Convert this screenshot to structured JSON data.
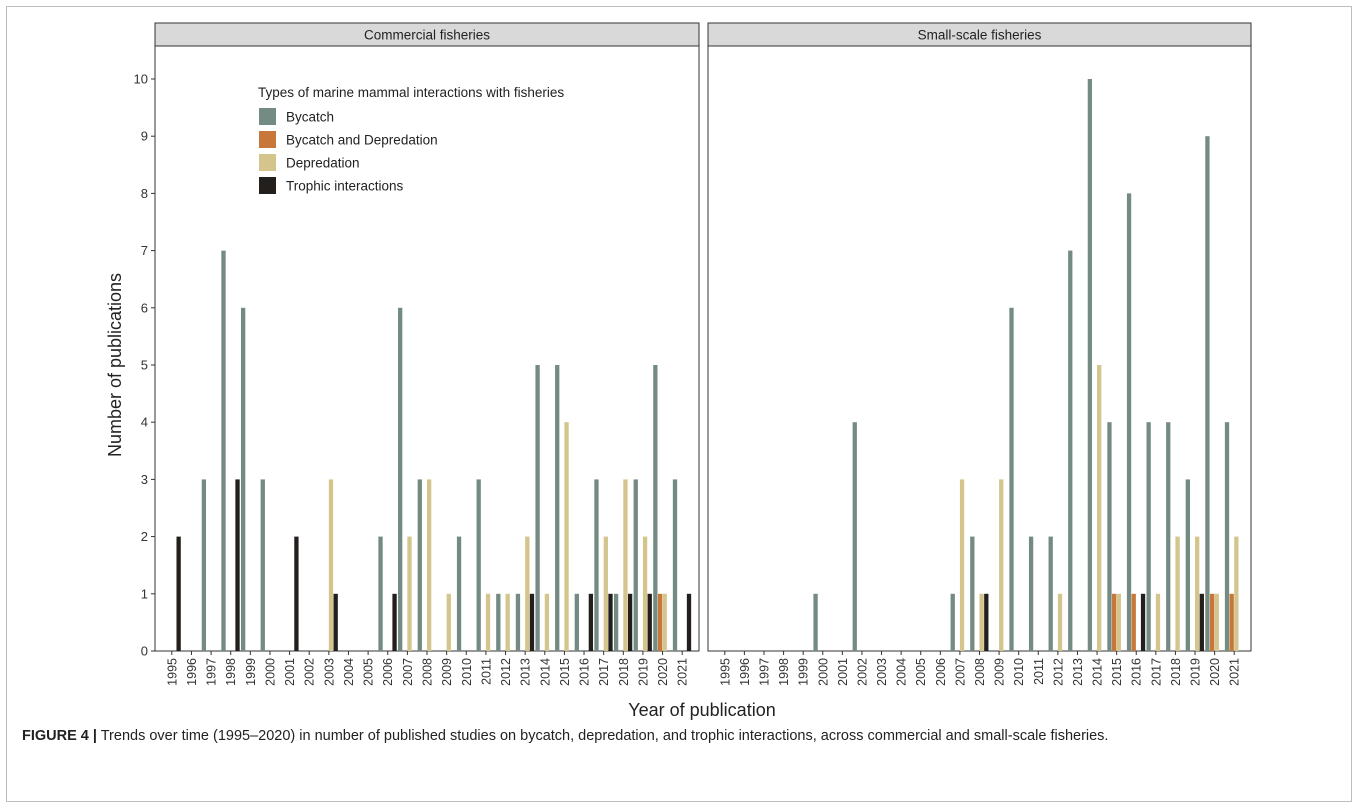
{
  "caption": {
    "label": "FIGURE 4 |",
    "text": " Trends over time (1995–2020) in number of published studies on bycatch, depredation, and trophic interactions, across commercial and small-scale fisheries."
  },
  "chart_data": {
    "type": "bar",
    "ylabel": "Number of publications",
    "xlabel": "Year of publication",
    "ylim": [
      0,
      10.5
    ],
    "yticks": [
      0,
      1,
      2,
      3,
      4,
      5,
      6,
      7,
      8,
      9,
      10
    ],
    "grid": false,
    "legend": {
      "title": "Types of marine mammal interactions with fisheries",
      "placement": "top-left (inside first panel)"
    },
    "categories": [
      "1995",
      "1996",
      "1997",
      "1998",
      "1999",
      "2000",
      "2001",
      "2002",
      "2003",
      "2004",
      "2005",
      "2006",
      "2007",
      "2008",
      "2009",
      "2010",
      "2011",
      "2012",
      "2013",
      "2014",
      "2015",
      "2016",
      "2017",
      "2018",
      "2019",
      "2020",
      "2021"
    ],
    "series": [
      {
        "name": "Bycatch",
        "color": "#748b84"
      },
      {
        "name": "Bycatch and Depredation",
        "color": "#c8773a"
      },
      {
        "name": "Depredation",
        "color": "#d3c58b"
      },
      {
        "name": "Trophic interactions",
        "color": "#231f1c"
      }
    ],
    "panels": [
      {
        "title": "Commercial fisheries",
        "values": {
          "1995": [
            0,
            0,
            0,
            2
          ],
          "1996": [
            0,
            0,
            0,
            0
          ],
          "1997": [
            3,
            0,
            0,
            0
          ],
          "1998": [
            7,
            0,
            0,
            3
          ],
          "1999": [
            6,
            0,
            0,
            0
          ],
          "2000": [
            3,
            0,
            0,
            0
          ],
          "2001": [
            0,
            0,
            0,
            2
          ],
          "2002": [
            0,
            0,
            0,
            0
          ],
          "2003": [
            0,
            0,
            3,
            1
          ],
          "2004": [
            0,
            0,
            0,
            0
          ],
          "2005": [
            0,
            0,
            0,
            0
          ],
          "2006": [
            2,
            0,
            0,
            1
          ],
          "2007": [
            6,
            0,
            2,
            0
          ],
          "2008": [
            3,
            0,
            3,
            0
          ],
          "2009": [
            0,
            0,
            1,
            0
          ],
          "2010": [
            2,
            0,
            0,
            0
          ],
          "2011": [
            3,
            0,
            1,
            0
          ],
          "2012": [
            1,
            0,
            1,
            0
          ],
          "2013": [
            1,
            0,
            2,
            1
          ],
          "2014": [
            5,
            0,
            1,
            0
          ],
          "2015": [
            5,
            0,
            4,
            0
          ],
          "2016": [
            1,
            0,
            0,
            1
          ],
          "2017": [
            3,
            0,
            2,
            1
          ],
          "2018": [
            1,
            0,
            3,
            1
          ],
          "2019": [
            3,
            0,
            2,
            1
          ],
          "2020": [
            5,
            1,
            1,
            0
          ],
          "2021": [
            3,
            0,
            0,
            1
          ]
        }
      },
      {
        "title": "Small-scale fisheries",
        "values": {
          "1995": [
            0,
            0,
            0,
            0
          ],
          "1996": [
            0,
            0,
            0,
            0
          ],
          "1997": [
            0,
            0,
            0,
            0
          ],
          "1998": [
            0,
            0,
            0,
            0
          ],
          "1999": [
            0,
            0,
            0,
            0
          ],
          "2000": [
            1,
            0,
            0,
            0
          ],
          "2001": [
            0,
            0,
            0,
            0
          ],
          "2002": [
            4,
            0,
            0,
            0
          ],
          "2003": [
            0,
            0,
            0,
            0
          ],
          "2004": [
            0,
            0,
            0,
            0
          ],
          "2005": [
            0,
            0,
            0,
            0
          ],
          "2006": [
            0,
            0,
            0,
            0
          ],
          "2007": [
            1,
            0,
            3,
            0
          ],
          "2008": [
            2,
            0,
            1,
            1
          ],
          "2009": [
            0,
            0,
            3,
            0
          ],
          "2010": [
            6,
            0,
            0,
            0
          ],
          "2011": [
            2,
            0,
            0,
            0
          ],
          "2012": [
            2,
            0,
            1,
            0
          ],
          "2013": [
            7,
            0,
            0,
            0
          ],
          "2014": [
            10,
            0,
            5,
            0
          ],
          "2015": [
            4,
            1,
            1,
            0
          ],
          "2016": [
            8,
            1,
            0,
            1
          ],
          "2017": [
            4,
            0,
            1,
            0
          ],
          "2018": [
            4,
            0,
            2,
            0
          ],
          "2019": [
            3,
            0,
            2,
            1
          ],
          "2020": [
            9,
            1,
            1,
            0
          ],
          "2021": [
            4,
            1,
            2,
            0
          ]
        }
      }
    ]
  }
}
